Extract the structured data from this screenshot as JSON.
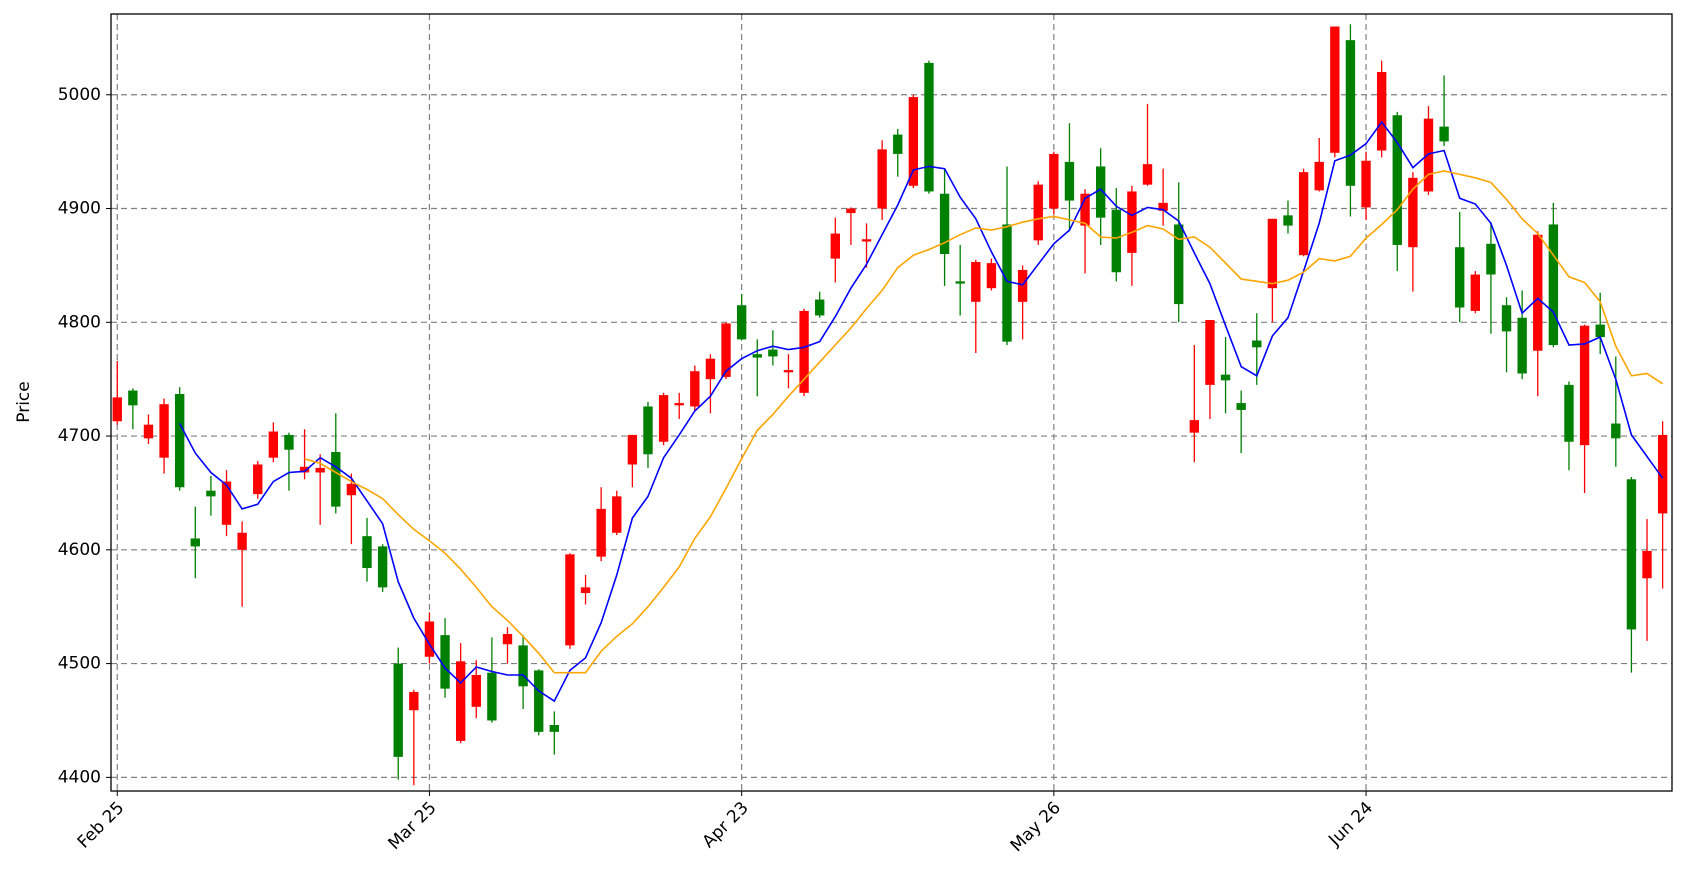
{
  "chart_data": {
    "type": "candlestick",
    "ylabel": "Price",
    "categories": [
      "Feb 25",
      null,
      null,
      null,
      null,
      null,
      null,
      null,
      null,
      null,
      null,
      null,
      null,
      null,
      null,
      null,
      null,
      null,
      null,
      null,
      "Mar 25",
      null,
      null,
      null,
      null,
      null,
      null,
      null,
      null,
      null,
      null,
      null,
      null,
      null,
      null,
      null,
      null,
      null,
      null,
      null,
      "Apr 23",
      null,
      null,
      null,
      null,
      null,
      null,
      null,
      null,
      null,
      null,
      null,
      null,
      null,
      null,
      null,
      null,
      null,
      null,
      null,
      "May 26",
      null,
      null,
      null,
      null,
      null,
      null,
      null,
      null,
      null,
      null,
      null,
      null,
      null,
      null,
      null,
      null,
      null,
      null,
      null,
      "Jun 24",
      null,
      null,
      null,
      null,
      null,
      null,
      null,
      null,
      null,
      null,
      null,
      null,
      null,
      null,
      null,
      null,
      null,
      null,
      null
    ],
    "open": [
      4713,
      4740,
      4698,
      4681,
      4737,
      4610,
      4652,
      4622,
      4600,
      4649,
      4681,
      4701,
      4668,
      4668,
      4686,
      4648,
      4612,
      4603,
      4500,
      4459,
      4506,
      4525,
      4432,
      4462,
      4492,
      4517,
      4516,
      4494,
      4446,
      4516,
      4562,
      4594,
      4615,
      4675,
      4726,
      4695,
      4727,
      4726,
      4750,
      4752,
      4815,
      4772,
      4776,
      4756,
      4738,
      4820,
      4856,
      4896,
      4871,
      4900,
      4965,
      4920,
      5028,
      4913,
      4836,
      4818,
      4830,
      4886,
      4818,
      4872,
      4900,
      4941,
      4885,
      4937,
      4899,
      4861,
      4921,
      4898,
      4886,
      4703,
      4745,
      4754,
      4729,
      4784,
      4830,
      4894,
      4859,
      4916,
      4949,
      5048,
      4901,
      4951,
      4982,
      4866,
      4915,
      4972,
      4866,
      4810,
      4869,
      4815,
      4804,
      4775,
      4886,
      4745,
      4692,
      4798,
      4711,
      4662,
      4575,
      4632
    ],
    "high": [
      4766,
      4742,
      4719,
      4733,
      4743,
      4638,
      4665,
      4670,
      4625,
      4678,
      4712,
      4703,
      4706,
      4684,
      4720,
      4667,
      4628,
      4605,
      4514,
      4477,
      4545,
      4540,
      4518,
      4503,
      4523,
      4532,
      4525,
      4495,
      4458,
      4597,
      4578,
      4655,
      4652,
      4701,
      4730,
      4738,
      4738,
      4762,
      4772,
      4800,
      4825,
      4785,
      4793,
      4772,
      4812,
      4827,
      4892,
      4901,
      4887,
      4960,
      4970,
      5000,
      5030,
      4935,
      4868,
      4855,
      4856,
      4937,
      4850,
      4924,
      4950,
      4975,
      4917,
      4953,
      4918,
      4920,
      4992,
      4935,
      4923,
      4780,
      4802,
      4787,
      4740,
      4808,
      4891,
      4907,
      4935,
      4962,
      5060,
      5062,
      4950,
      5030,
      4985,
      4932,
      4990,
      5017,
      4897,
      4845,
      4888,
      4822,
      4828,
      4880,
      4905,
      4748,
      4798,
      4826,
      4770,
      4664,
      4627,
      4713
    ],
    "low": [
      4710,
      4706,
      4693,
      4667,
      4652,
      4575,
      4630,
      4612,
      4550,
      4645,
      4677,
      4652,
      4662,
      4622,
      4632,
      4605,
      4572,
      4563,
      4398,
      4393,
      4500,
      4470,
      4430,
      4452,
      4448,
      4500,
      4460,
      4437,
      4420,
      4513,
      4552,
      4590,
      4613,
      4655,
      4672,
      4692,
      4715,
      4722,
      4720,
      4750,
      4784,
      4735,
      4762,
      4742,
      4735,
      4804,
      4835,
      4868,
      4848,
      4890,
      4928,
      4918,
      4913,
      4832,
      4806,
      4773,
      4828,
      4780,
      4785,
      4868,
      4895,
      4880,
      4843,
      4868,
      4836,
      4832,
      4920,
      4885,
      4800,
      4677,
      4715,
      4720,
      4685,
      4745,
      4800,
      4878,
      4858,
      4915,
      4945,
      4893,
      4890,
      4945,
      4845,
      4827,
      4912,
      4955,
      4800,
      4808,
      4790,
      4756,
      4750,
      4735,
      4778,
      4670,
      4650,
      4772,
      4673,
      4492,
      4520,
      4566
    ],
    "close": [
      4734,
      4727,
      4710,
      4728,
      4655,
      4603,
      4647,
      4660,
      4615,
      4675,
      4704,
      4688,
      4673,
      4672,
      4638,
      4658,
      4584,
      4567,
      4418,
      4475,
      4537,
      4478,
      4502,
      4490,
      4450,
      4526,
      4480,
      4440,
      4440,
      4596,
      4567,
      4636,
      4647,
      4701,
      4684,
      4736,
      4729,
      4757,
      4768,
      4799,
      4785,
      4769,
      4770,
      4758,
      4810,
      4806,
      4878,
      4900,
      4873,
      4952,
      4948,
      4998,
      4915,
      4860,
      4834,
      4853,
      4852,
      4783,
      4846,
      4921,
      4948,
      4907,
      4913,
      4892,
      4844,
      4915,
      4939,
      4905,
      4816,
      4714,
      4802,
      4749,
      4723,
      4778,
      4891,
      4885,
      4932,
      4941,
      5060,
      4920,
      4942,
      5020,
      4868,
      4927,
      4979,
      4959,
      4813,
      4842,
      4842,
      4792,
      4755,
      4877,
      4780,
      4695,
      4797,
      4787,
      4698,
      4530,
      4599,
      4701
    ],
    "up_color": "red",
    "down_color": "green",
    "moving_averages": [
      {
        "color": "blue",
        "values": [
          null,
          null,
          null,
          null,
          4711,
          4685,
          4668,
          4657,
          4636,
          4640,
          4660,
          4668,
          4669,
          4681,
          4673,
          4663,
          4643,
          4623,
          4572,
          4540,
          4517,
          4496,
          4483,
          4497,
          4493,
          4490,
          4490,
          4476,
          4467,
          4494,
          4505,
          4536,
          4578,
          4628,
          4647,
          4681,
          4701,
          4722,
          4735,
          4757,
          4768,
          4775,
          4779,
          4776,
          4778,
          4783,
          4805,
          4830,
          4851,
          4877,
          4903,
          4934,
          4937,
          4935,
          4910,
          4891,
          4862,
          4836,
          4833,
          4851,
          4869,
          4881,
          4909,
          4917,
          4902,
          4894,
          4901,
          4899,
          4889,
          4861,
          4834,
          4797,
          4761,
          4753,
          4788,
          4804,
          4845,
          4887,
          4942,
          4947,
          4957,
          4976,
          4958,
          4936,
          4948,
          4951,
          4909,
          4904,
          4887,
          4850,
          4808,
          4821,
          4809,
          4780,
          4781,
          4787,
          4750,
          4701,
          4682,
          4663
        ]
      },
      {
        "color": "orange",
        "values": [
          null,
          null,
          null,
          null,
          null,
          null,
          null,
          null,
          null,
          null,
          null,
          null,
          4680,
          4676,
          4668,
          4660,
          4653,
          4645,
          4631,
          4618,
          4608,
          4597,
          4583,
          4567,
          4550,
          4538,
          4524,
          4509,
          4492,
          4492,
          4492,
          4511,
          4524,
          4535,
          4550,
          4567,
          4585,
          4610,
          4629,
          4654,
          4680,
          4705,
          4719,
          4735,
          4750,
          4765,
          4780,
          4795,
          4812,
          4828,
          4848,
          4859,
          4864,
          4870,
          4877,
          4883,
          4881,
          4884,
          4888,
          4891,
          4893,
          4890,
          4887,
          4875,
          4874,
          4879,
          4885,
          4882,
          4873,
          4875,
          4866,
          4852,
          4838,
          4836,
          4834,
          4837,
          4844,
          4856,
          4854,
          4858,
          4874,
          4886,
          4899,
          4917,
          4930,
          4933,
          4930,
          4927,
          4923,
          4908,
          4891,
          4878,
          4859,
          4840,
          4835,
          4818,
          4779,
          4753,
          4755,
          4746
        ]
      }
    ],
    "ylim": [
      4388,
      5071
    ],
    "yticks": [
      4400,
      4500,
      4600,
      4700,
      4800,
      4900,
      5000
    ],
    "grid": true
  }
}
